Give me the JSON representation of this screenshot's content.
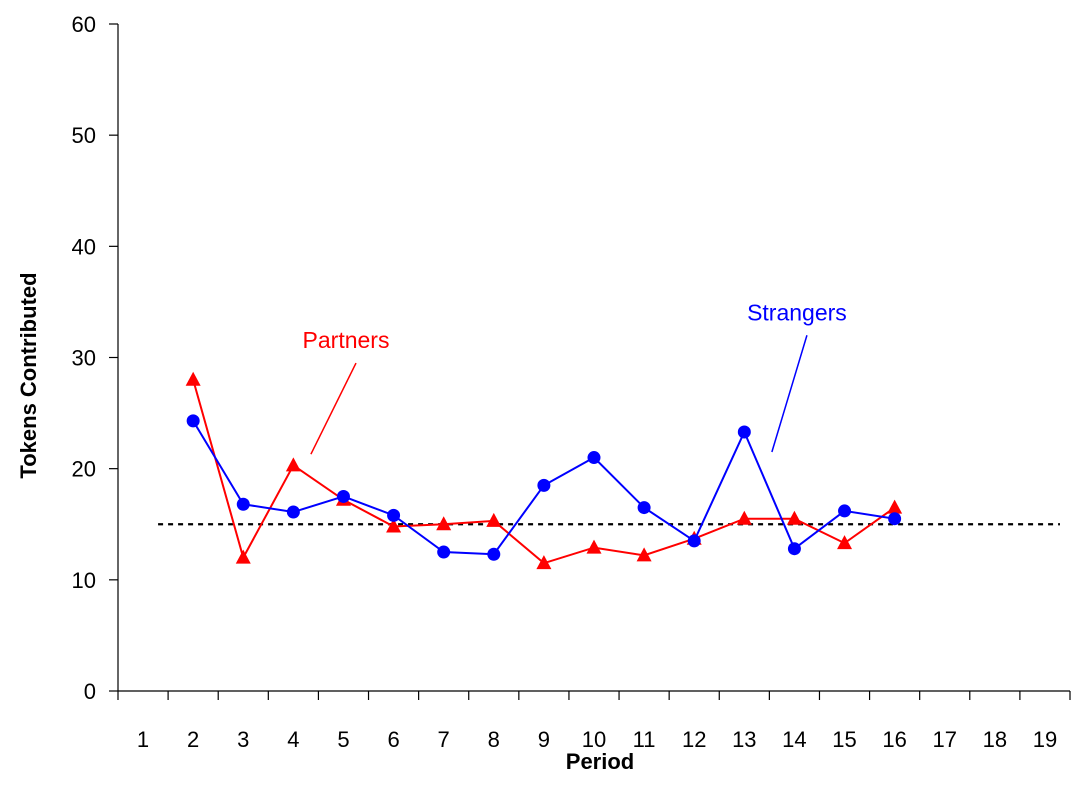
{
  "chart_data": {
    "type": "line",
    "xlabel": "Period",
    "ylabel": "Tokens Contributed",
    "categories": [
      "1",
      "2",
      "3",
      "4",
      "5",
      "6",
      "7",
      "8",
      "9",
      "10",
      "11",
      "12",
      "13",
      "14",
      "15",
      "16",
      "17",
      "18",
      "19"
    ],
    "xlim": [
      0.5,
      19.5
    ],
    "ylim": [
      0,
      60
    ],
    "yticks": [
      0,
      10,
      20,
      30,
      40,
      50,
      60
    ],
    "grid": false,
    "legend": "none",
    "reference_line": {
      "y": 15,
      "style": "dotted",
      "color": "#000000"
    },
    "series": [
      {
        "name": "Partners",
        "color": "#ff0000",
        "marker": "triangle",
        "x": [
          2,
          3,
          4,
          5,
          6,
          7,
          8,
          9,
          10,
          11,
          12,
          13,
          14,
          15,
          16
        ],
        "values": [
          28.0,
          12.0,
          20.3,
          17.2,
          14.8,
          15.0,
          15.3,
          11.5,
          12.9,
          12.2,
          13.7,
          15.5,
          15.5,
          13.3,
          16.5
        ]
      },
      {
        "name": "Strangers",
        "color": "#0000ff",
        "marker": "circle",
        "x": [
          2,
          3,
          4,
          5,
          6,
          7,
          8,
          9,
          10,
          11,
          12,
          13,
          14,
          15,
          16
        ],
        "values": [
          24.3,
          16.8,
          16.1,
          17.5,
          15.8,
          12.5,
          12.3,
          18.5,
          21.0,
          16.5,
          13.5,
          23.3,
          12.8,
          16.2,
          15.5
        ]
      }
    ],
    "annotations": [
      {
        "text": "Partners",
        "series": "Partners",
        "color": "#ff0000",
        "arrow_from": [
          5.25,
          29.5
        ],
        "arrow_to": [
          4.35,
          21.3
        ]
      },
      {
        "text": "Strangers",
        "series": "Strangers",
        "color": "#0000ff",
        "arrow_from": [
          14.25,
          32.0
        ],
        "arrow_to": [
          13.55,
          21.5
        ]
      }
    ]
  }
}
